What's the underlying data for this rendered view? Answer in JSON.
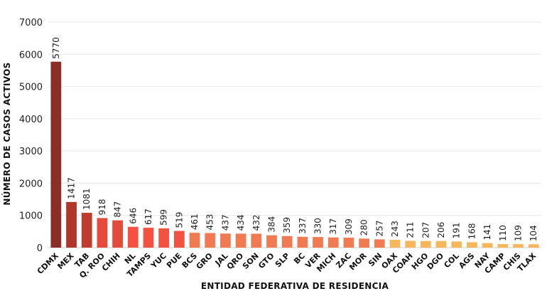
{
  "chart_data": {
    "type": "bar",
    "xlabel": "ENTIDAD FEDERATIVA DE RESIDENCIA",
    "ylabel": "NÚMERO DE CASOS ACTIVOS",
    "ylim": [
      0,
      7000
    ],
    "yticks": [
      0,
      1000,
      2000,
      3000,
      4000,
      5000,
      6000,
      7000
    ],
    "grid": true,
    "categories": [
      "CDMX",
      "MEX",
      "TAB",
      "Q. ROO",
      "CHIH",
      "NL",
      "TAMPS",
      "YUC",
      "PUE",
      "BCS",
      "GRO",
      "JAL",
      "QRO",
      "SON",
      "GTO",
      "SLP",
      "BC",
      "VER",
      "MICH",
      "ZAC",
      "MOR",
      "SIN",
      "OAX",
      "COAH",
      "HGO",
      "DGO",
      "COL",
      "AGS",
      "NAY",
      "CAMP",
      "CHIS",
      "TLAX"
    ],
    "values": [
      5770,
      1417,
      1081,
      918,
      847,
      646,
      617,
      599,
      519,
      461,
      453,
      437,
      434,
      432,
      384,
      359,
      337,
      330,
      317,
      309,
      280,
      257,
      243,
      211,
      207,
      206,
      191,
      168,
      141,
      110,
      109,
      104
    ],
    "colors": [
      "#8b2e26",
      "#b0352b",
      "#bf3b2e",
      "#e54a3b",
      "#e54a3b",
      "#f2523f",
      "#f2523f",
      "#f2523f",
      "#f2523f",
      "#f07a52",
      "#f07a52",
      "#f07a52",
      "#f07a52",
      "#f07a52",
      "#f07a52",
      "#f07a52",
      "#f07a52",
      "#f07a52",
      "#f07a52",
      "#f07a52",
      "#f07a52",
      "#f07a52",
      "#f6b75c",
      "#f6b75c",
      "#f6b75c",
      "#f6b75c",
      "#f6b75c",
      "#f6b75c",
      "#f6b75c",
      "#f6b75c",
      "#f6b75c",
      "#f6b75c"
    ]
  }
}
